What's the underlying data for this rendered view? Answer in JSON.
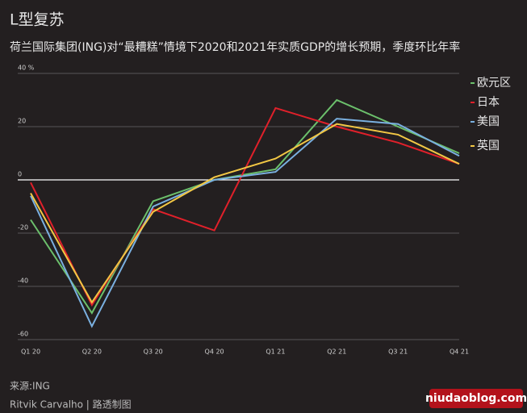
{
  "title": "L型复苏",
  "subtitle": "荷兰国际集团(ING)对“最糟糕”情境下2020和2021年实质GDP的增长预期，季度环比年率",
  "source": "来源:ING",
  "credit": "Ritvik Carvalho | 路透制图",
  "watermark": "niudaoblog.com",
  "chart_data": {
    "type": "line",
    "categories": [
      "Q1 20",
      "Q2 20",
      "Q3 20",
      "Q4 20",
      "Q1 21",
      "Q2 21",
      "Q3 21",
      "Q4 21"
    ],
    "series": [
      {
        "name": "欧元区",
        "color": "#6cc06c",
        "values": [
          -15,
          -50,
          -8,
          0,
          4,
          30,
          20,
          10
        ]
      },
      {
        "name": "日本",
        "color": "#e0202a",
        "values": [
          -1,
          -47,
          -11,
          -19,
          27,
          20,
          14,
          6
        ]
      },
      {
        "name": "美国",
        "color": "#7ab0e0",
        "values": [
          -6,
          -55,
          -10,
          0,
          3,
          23,
          21,
          9
        ]
      },
      {
        "name": "英国",
        "color": "#f2c744",
        "values": [
          -5,
          -46,
          -12,
          1,
          8,
          21,
          17,
          6
        ]
      }
    ],
    "ylim": [
      -60,
      40
    ],
    "yticks": [
      -60,
      -40,
      -20,
      0,
      {
        "value": 40,
        "label": "40 %"
      },
      20
    ],
    "grid": true
  }
}
